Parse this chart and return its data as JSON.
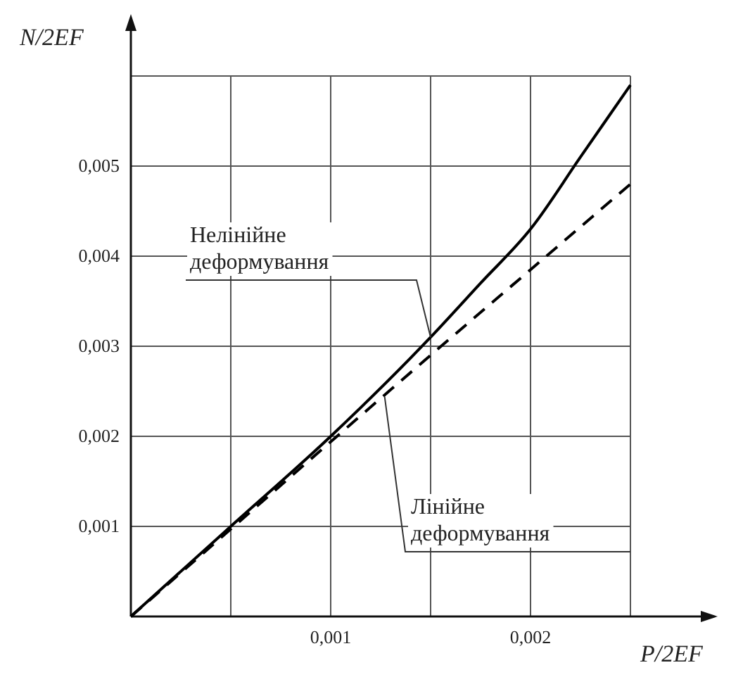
{
  "chart_data": {
    "type": "line",
    "xlabel": "P/2EF",
    "ylabel": "N/2EF",
    "xlim": [
      0,
      0.0025
    ],
    "ylim": [
      0,
      0.006
    ],
    "xticks": [
      {
        "value": 0.0005,
        "label": null
      },
      {
        "value": 0.001,
        "label": "0,001"
      },
      {
        "value": 0.0015,
        "label": null
      },
      {
        "value": 0.002,
        "label": "0,002"
      },
      {
        "value": 0.0025,
        "label": null
      }
    ],
    "yticks": [
      {
        "value": 0.001,
        "label": "0,001"
      },
      {
        "value": 0.002,
        "label": "0,002"
      },
      {
        "value": 0.003,
        "label": "0,003"
      },
      {
        "value": 0.004,
        "label": "0,004"
      },
      {
        "value": 0.005,
        "label": "0,005"
      },
      {
        "value": 0.006,
        "label": null
      }
    ],
    "grid": true,
    "series": [
      {
        "color": "#000000",
        "line_style": "solid",
        "x": [
          0,
          0.0005,
          0.001,
          0.0015,
          0.00175,
          0.002,
          0.00225,
          0.0025
        ],
        "values": [
          0,
          0.001,
          0.002,
          0.0031,
          0.0037,
          0.0043,
          0.0051,
          0.0059
        ]
      },
      {
        "color": "#000000",
        "line_style": "dashed",
        "x": [
          0,
          0.0005,
          0.001,
          0.0015,
          0.002,
          0.0025
        ],
        "values": [
          0,
          0.00097,
          0.00194,
          0.0029,
          0.00385,
          0.0048
        ]
      }
    ],
    "annotations": [
      {
        "text": "Нелінійне деформування",
        "x": 0.0015,
        "y": 0.0031
      },
      {
        "text": "Лінійне деформування",
        "x": 0.00127,
        "y": 0.00244
      }
    ]
  }
}
